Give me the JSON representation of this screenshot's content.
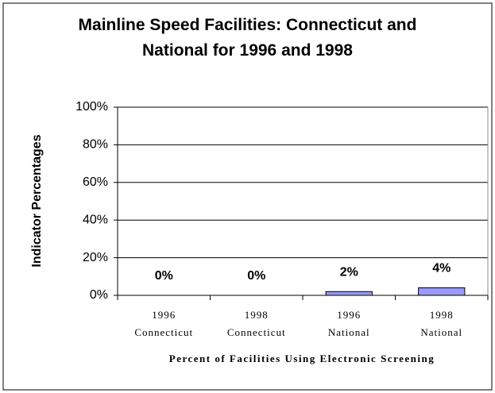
{
  "chart_data": {
    "type": "bar",
    "title": "Mainline Speed Facilities: Connecticut and National for 1996 and 1998",
    "y_label": "Indicator Percentages",
    "x_label": "Percent of Facilities Using Electronic Screening",
    "categories": [
      "1996 Connecticut",
      "1998 Connecticut",
      "1996 National",
      "1998 National"
    ],
    "values": [
      0,
      0,
      2,
      4
    ],
    "value_labels": [
      "0%",
      "0%",
      "2%",
      "4%"
    ],
    "color": "#9999ff",
    "ylim": [
      0,
      100
    ],
    "yticks": [
      {
        "value": 0,
        "label": "0%"
      },
      {
        "value": 20,
        "label": "20%"
      },
      {
        "value": 40,
        "label": "40%"
      },
      {
        "value": 60,
        "label": "60%"
      },
      {
        "value": 80,
        "label": "80%"
      },
      {
        "value": 100,
        "label": "100%"
      }
    ],
    "grid": true
  }
}
